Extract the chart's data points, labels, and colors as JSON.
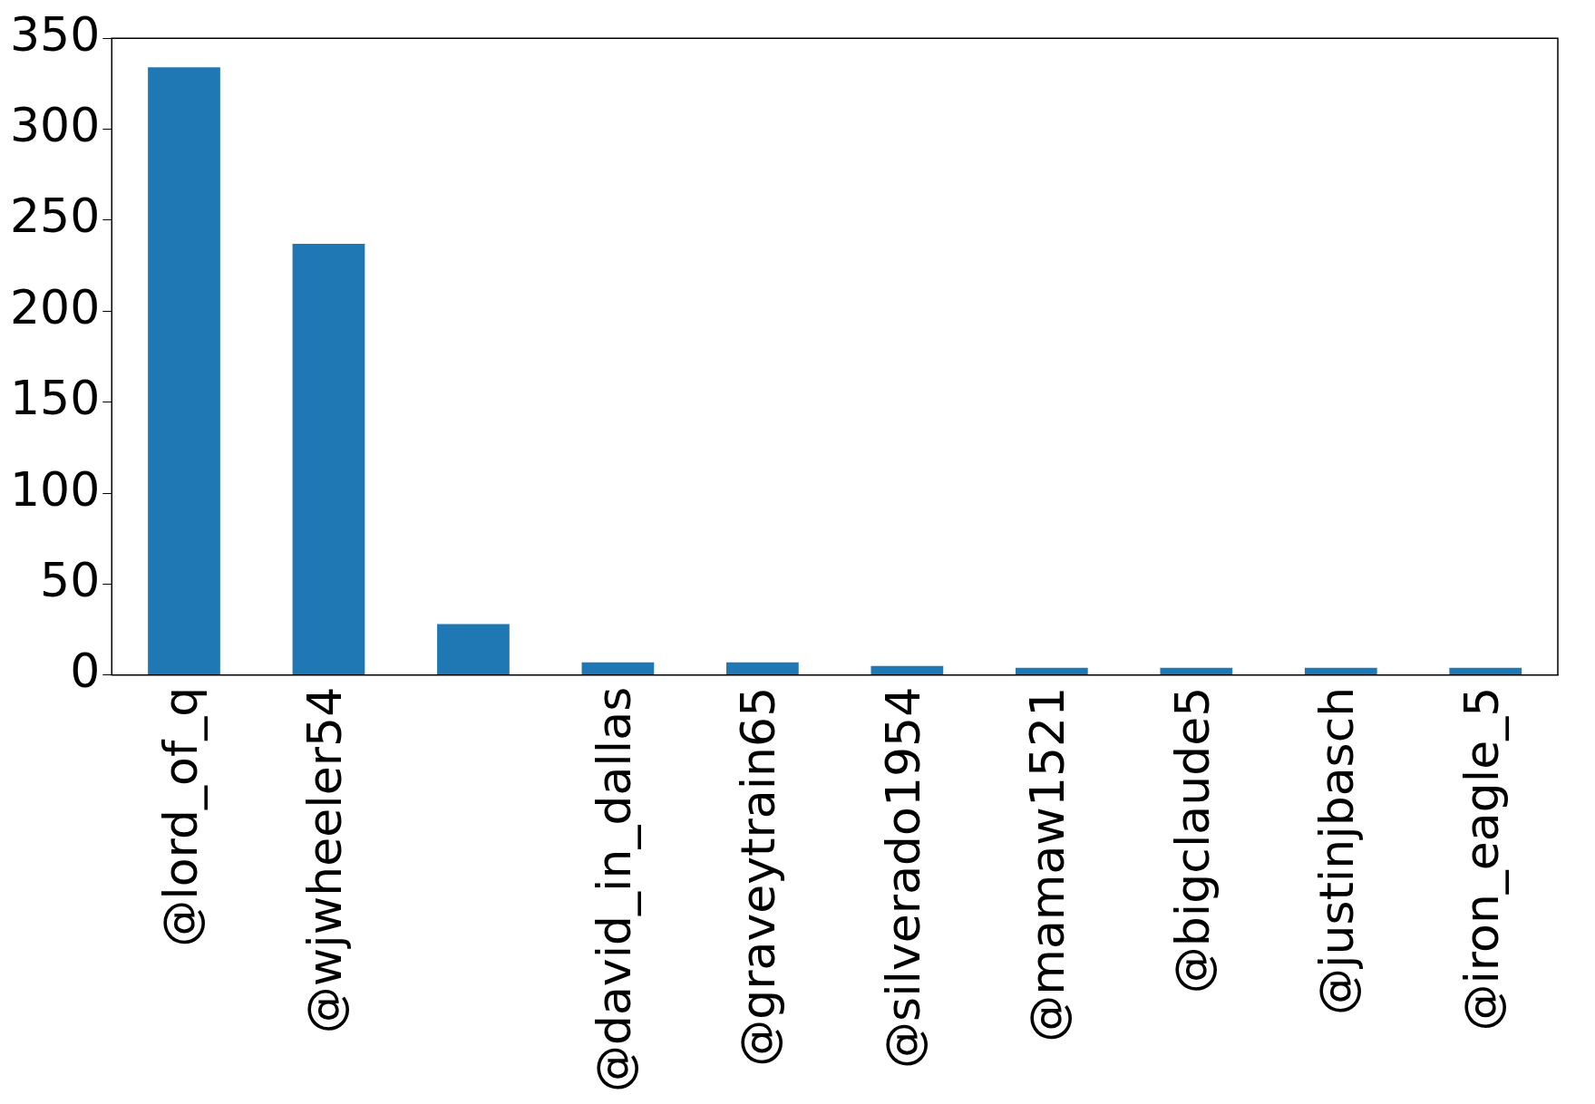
{
  "chart_data": {
    "type": "bar",
    "categories": [
      "@lord_of_q",
      "@wjwheeler54",
      null,
      "@david_in_dallas",
      "@graveytrain65",
      "@silverado1954",
      "@mamaw1521",
      "@bigclaude5",
      "@justinjbasch",
      "@iron_eagle_5"
    ],
    "values": [
      334,
      237,
      28,
      7,
      7,
      5,
      4,
      4,
      4,
      4
    ],
    "color": "#1f77b4",
    "ylim": [
      0,
      350
    ],
    "yticks": [
      0,
      50,
      100,
      150,
      200,
      250,
      300,
      350
    ],
    "grid": false,
    "legend": false
  }
}
